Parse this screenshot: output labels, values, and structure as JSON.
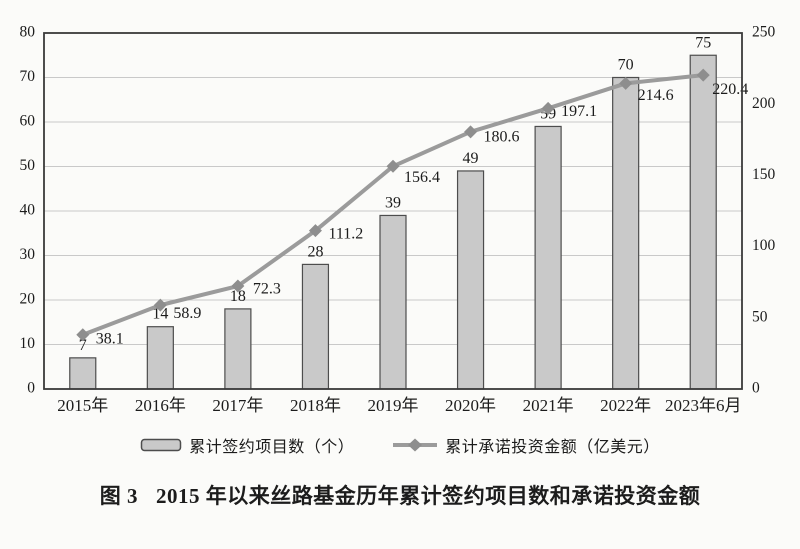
{
  "caption": {
    "label": "图 3",
    "text": "2015 年以来丝路基金历年累计签约项目数和承诺投资金额"
  },
  "colors": {
    "background": "#fbfbf9",
    "bar_fill": "#c9c9c9",
    "bar_border": "#4d4d4d",
    "line_color": "#9b9b9b",
    "marker_color": "#8e8e8e",
    "grid_color": "#c9c9c9",
    "frame_color": "#3a3a3a",
    "text_color": "#1c1c1c"
  },
  "chart_data": {
    "type": "bar",
    "subtype": "bar+line dual axis",
    "title": "图3 2015年以来丝路基金历年累计签约项目数和承诺投资金额",
    "categories": [
      "2015年",
      "2016年",
      "2017年",
      "2018年",
      "2019年",
      "2020年",
      "2021年",
      "2022年",
      "2023年6月"
    ],
    "series": [
      {
        "name": "累计签约项目数（个）",
        "type": "bar",
        "axis": "left",
        "values": [
          7,
          14,
          18,
          28,
          39,
          49,
          59,
          70,
          75
        ]
      },
      {
        "name": "累计承诺投资金额（亿美元）",
        "type": "line",
        "axis": "right",
        "values": [
          38.1,
          58.9,
          72.3,
          111.2,
          156.4,
          180.6,
          197.1,
          214.6,
          220.4
        ]
      }
    ],
    "left_axis": {
      "min": 0,
      "max": 80,
      "step": 10,
      "ticks": [
        0,
        10,
        20,
        30,
        40,
        50,
        60,
        70,
        80
      ]
    },
    "right_axis": {
      "min": 0,
      "max": 250,
      "step": 50,
      "ticks": [
        0,
        50,
        100,
        150,
        200,
        250
      ]
    },
    "grid": true,
    "legend_position": "bottom",
    "data_labels": true
  }
}
